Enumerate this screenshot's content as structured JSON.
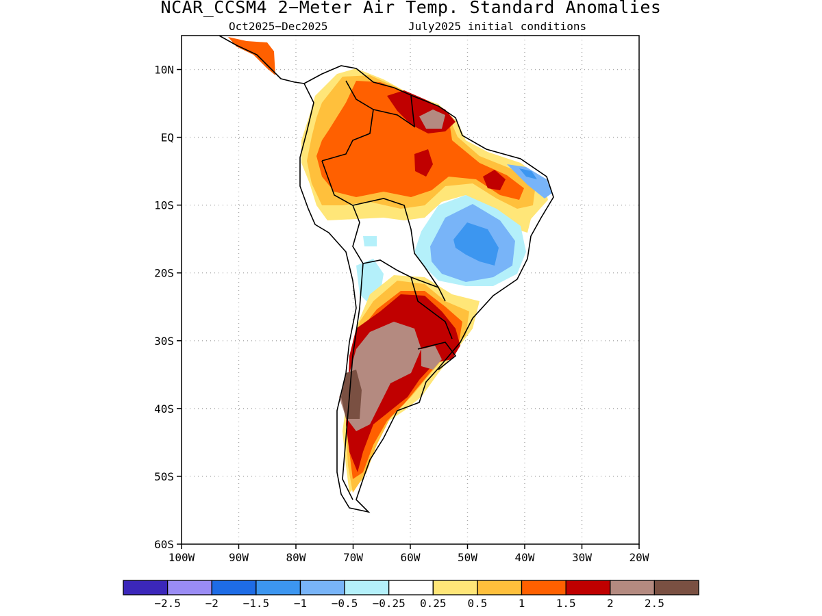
{
  "header": {
    "title": "NCAR_CCSM4 2−Meter Air Temp. Standard Anomalies",
    "period": "Oct2025−Dec2025",
    "initial_conditions": "July2025 initial conditions"
  },
  "axes": {
    "lat_labels": [
      "10N",
      "EQ",
      "10S",
      "20S",
      "30S",
      "40S",
      "50S",
      "60S"
    ],
    "lon_labels": [
      "100W",
      "90W",
      "80W",
      "70W",
      "60W",
      "50W",
      "40W",
      "30W",
      "20W"
    ],
    "lat_range": [
      -60,
      15
    ],
    "lon_range": [
      -100,
      -20
    ],
    "grid": "dotted"
  },
  "legend": {
    "colors": [
      "#3b27ba",
      "#9a8cf4",
      "#1e6ce6",
      "#3c96f0",
      "#78b4f8",
      "#b4f0fa",
      "#ffffff",
      "#ffe678",
      "#ffc03c",
      "#ff6000",
      "#c00000",
      "#b48a80",
      "#7a5042"
    ],
    "labels": [
      "−2.5",
      "−2",
      "−1.5",
      "−1",
      "−0.5",
      "−0.25",
      "0.25",
      "0.5",
      "1",
      "1.5",
      "2",
      "2.5"
    ]
  },
  "colors": {
    "land_outline": "#000000",
    "grid": "#aaaaaa"
  }
}
